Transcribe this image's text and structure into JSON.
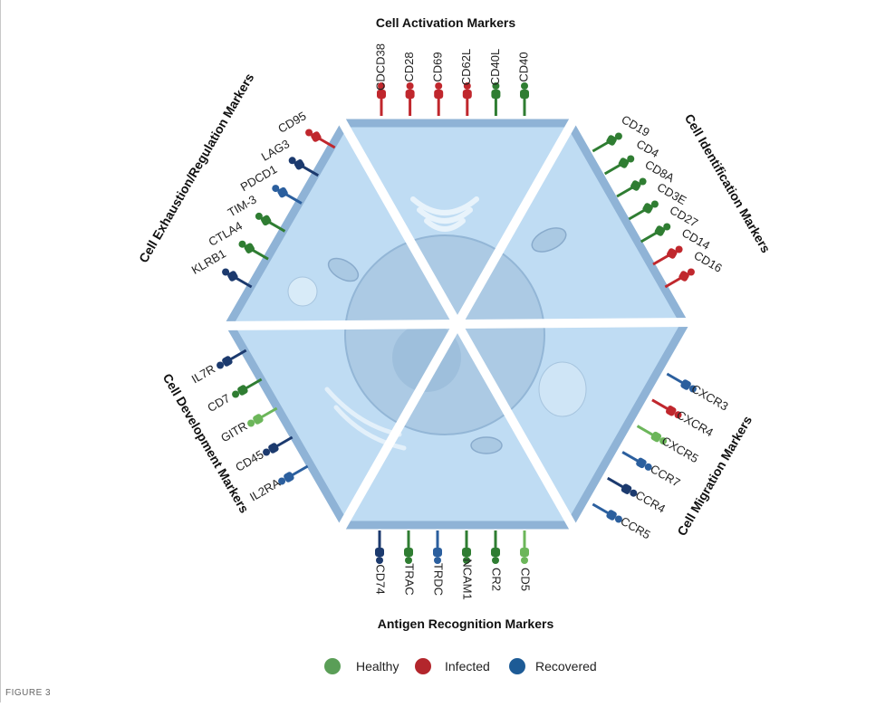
{
  "sections": {
    "activation": {
      "title": "Cell Activation Markers",
      "markers": [
        "CDCD38",
        "CD28",
        "CD69",
        "CD62L",
        "CD40L",
        "CD40"
      ],
      "colors": [
        "red",
        "red",
        "red",
        "red",
        "green",
        "green"
      ]
    },
    "identification": {
      "title": "Cell Identification Markers",
      "markers": [
        "CD19",
        "CD4",
        "CD8A",
        "CD3E",
        "CD27",
        "CD14",
        "CD16"
      ],
      "colors": [
        "green",
        "green",
        "green",
        "green",
        "green",
        "red",
        "red"
      ]
    },
    "migration": {
      "title": "Cell Migration Markers",
      "markers": [
        "CXCR3",
        "CXCR4",
        "CXCR5",
        "CCR7",
        "CCR4",
        "CCR5"
      ],
      "colors": [
        "blue",
        "red",
        "lightgreen",
        "blue",
        "navy",
        "blue"
      ]
    },
    "recognition": {
      "title": "Antigen Recognition Markers",
      "markers": [
        "CD74",
        "TRAC",
        "TRDC",
        "NCAM1",
        "CR2",
        "CD5"
      ],
      "colors": [
        "navy",
        "green",
        "blue",
        "green",
        "green",
        "lightgreen"
      ]
    },
    "development": {
      "title": "Cell Development Markers",
      "markers": [
        "IL7R",
        "CD7",
        "GITR",
        "CD45",
        "IL2RA"
      ],
      "colors": [
        "navy",
        "green",
        "lightgreen",
        "navy",
        "blue"
      ]
    },
    "exhaustion": {
      "title": "Cell Exhaustion/Regulation Markers",
      "markers": [
        "CD95",
        "LAG3",
        "PDCD1",
        "TIM-3",
        "CTLA4",
        "KLRB1"
      ],
      "colors": [
        "red",
        "navy",
        "blue",
        "green",
        "green",
        "navy"
      ]
    }
  },
  "legend": [
    {
      "label": "Healthy",
      "color": "#5a9e57"
    },
    {
      "label": "Infected",
      "color": "#b3262c"
    },
    {
      "label": "Recovered",
      "color": "#1d5b96"
    }
  ],
  "palette": {
    "red": "#c0272d",
    "green": "#2f7d32",
    "lightgreen": "#6cb65a",
    "blue": "#2b5f9e",
    "navy": "#1c3a6e",
    "cell_fill": "#bfdcf3",
    "cell_border": "#8fb3d6"
  },
  "caption": "FIGURE 3"
}
